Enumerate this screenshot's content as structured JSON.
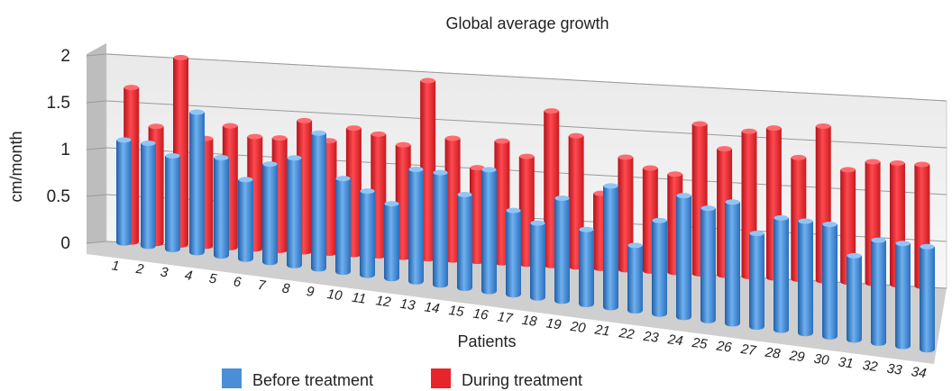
{
  "chart_data": {
    "type": "bar",
    "title": "Global average growth",
    "xlabel": "Patients",
    "ylabel": "cm/month",
    "ylim": [
      0,
      2
    ],
    "yticks": [
      "0",
      "0.5",
      "1",
      "1.5",
      "2"
    ],
    "categories": [
      "1",
      "2",
      "3",
      "4",
      "5",
      "6",
      "7",
      "8",
      "9",
      "10",
      "11",
      "12",
      "13",
      "14",
      "15",
      "16",
      "17",
      "18",
      "19",
      "20",
      "21",
      "22",
      "23",
      "24",
      "25",
      "26",
      "27",
      "28",
      "29",
      "30",
      "31",
      "32",
      "33",
      "34"
    ],
    "series": [
      {
        "name": "Before treatment",
        "color": "#4a8fd6",
        "values": [
          1.1,
          1.1,
          1.0,
          1.5,
          1.05,
          0.85,
          1.05,
          1.15,
          1.45,
          1.0,
          0.9,
          0.8,
          1.2,
          1.2,
          1.0,
          1.3,
          0.9,
          0.8,
          1.1,
          0.8,
          1.3,
          0.7,
          1.0,
          1.3,
          1.2,
          1.3,
          1.0,
          1.2,
          1.2,
          1.2,
          0.9,
          1.1,
          1.1,
          1.1
        ]
      },
      {
        "name": "During treatment",
        "color": "#e8242b",
        "values": [
          1.65,
          1.25,
          2.0,
          1.15,
          1.3,
          1.2,
          1.2,
          1.4,
          1.2,
          1.35,
          1.3,
          1.2,
          1.9,
          1.3,
          1.0,
          1.3,
          1.15,
          1.65,
          1.4,
          0.8,
          1.2,
          1.1,
          1.05,
          1.6,
          1.35,
          1.55,
          1.6,
          1.3,
          1.65,
          1.2,
          1.3,
          1.3,
          1.3,
          null
        ]
      }
    ],
    "legend": "bottom",
    "grid": true
  }
}
